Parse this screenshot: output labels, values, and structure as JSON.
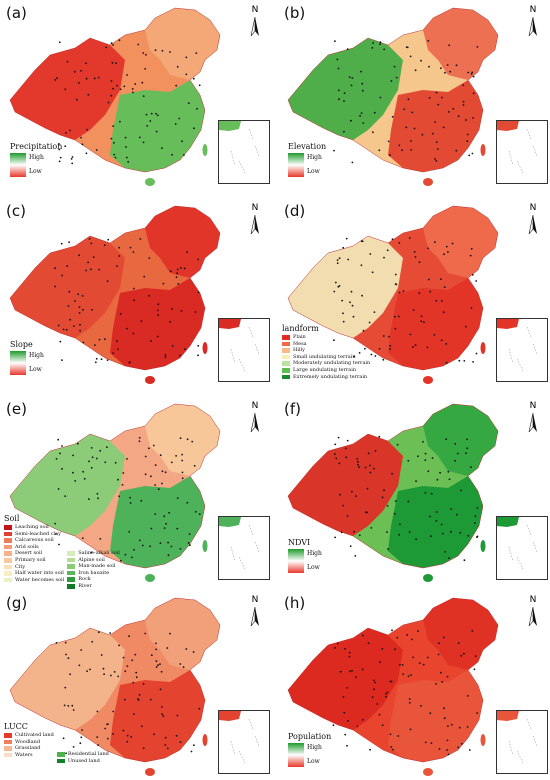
{
  "panels": [
    {
      "id": "a",
      "tag": "(a)",
      "legend": {
        "type": "gradient",
        "title": "Precipitation",
        "high": "High",
        "low": "Low"
      }
    },
    {
      "id": "b",
      "tag": "(b)",
      "legend": {
        "type": "gradient",
        "title": "Elevation",
        "high": "High",
        "low": "Low"
      }
    },
    {
      "id": "c",
      "tag": "(c)",
      "legend": {
        "type": "gradient",
        "title": "Slope",
        "high": "High",
        "low": "Low"
      }
    },
    {
      "id": "d",
      "tag": "(d)",
      "legend": {
        "type": "categorical",
        "title": "landform",
        "items": [
          {
            "label": "Plain",
            "color": "#e32b22"
          },
          {
            "label": "Mesa",
            "color": "#f06a4a"
          },
          {
            "label": "Hilly",
            "color": "#f9b889"
          },
          {
            "label": "Small undulating terrain",
            "color": "#f6f0b8"
          },
          {
            "label": "Moderately undulating terrain",
            "color": "#b9e3a0"
          },
          {
            "label": "Large undulating terrain",
            "color": "#5fbf4e"
          },
          {
            "label": "Extremely undulating terrain",
            "color": "#1a8a2c"
          }
        ]
      }
    },
    {
      "id": "e",
      "tag": "(e)",
      "legend": {
        "type": "categorical2",
        "title": "Soil",
        "col1": [
          {
            "label": "Leaching soil",
            "color": "#c1121c"
          },
          {
            "label": "Semi-leached clay",
            "color": "#e0412e"
          },
          {
            "label": "Calcareous soil",
            "color": "#ef7c5b"
          },
          {
            "label": "Arid soils",
            "color": "#f49a78"
          },
          {
            "label": "Desert soil",
            "color": "#f6b28a"
          },
          {
            "label": "Primary soil",
            "color": "#f8c99e"
          },
          {
            "label": "City",
            "color": "#fbe0b5"
          },
          {
            "label": "Half water into soil",
            "color": "#f7f0c6"
          },
          {
            "label": "Water becomes soil",
            "color": "#e7f2c6"
          }
        ],
        "col2": [
          {
            "label": "Saline-alkali soil",
            "color": "#d7ecb8"
          },
          {
            "label": "Alpine soil",
            "color": "#b5dd98"
          },
          {
            "label": "Man-made soil",
            "color": "#8ccc78"
          },
          {
            "label": "Iron bauxite",
            "color": "#5db45a"
          },
          {
            "label": "Rock",
            "color": "#2f9a3e"
          },
          {
            "label": "River",
            "color": "#137a2a"
          }
        ]
      }
    },
    {
      "id": "f",
      "tag": "(f)",
      "legend": {
        "type": "gradient",
        "title": "NDVI",
        "high": "High",
        "low": "Low"
      }
    },
    {
      "id": "g",
      "tag": "(g)",
      "legend": {
        "type": "categorical2",
        "title": "LUCC",
        "col1": [
          {
            "label": "Cultivated land",
            "color": "#e6382b"
          },
          {
            "label": "Woodland",
            "color": "#f07e5c"
          },
          {
            "label": "Grassland",
            "color": "#f6b893"
          },
          {
            "label": "Waters",
            "color": "#f9dcc6"
          }
        ],
        "col2": [
          {
            "label": "Residential land",
            "color": "#4fb24e"
          },
          {
            "label": "Unused land",
            "color": "#167f2c"
          }
        ]
      }
    },
    {
      "id": "h",
      "tag": "(h)",
      "legend": {
        "type": "gradient",
        "title": "Population",
        "high": "High",
        "low": "Low"
      }
    }
  ],
  "north_label": "N",
  "map_fills": {
    "a": {
      "west": "#e2392c",
      "mid": "#f2905e",
      "east": "#67bd5a",
      "ne": "#f4a777"
    },
    "b": {
      "west": "#4fae4a",
      "mid": "#f6c78d",
      "east": "#e24a33",
      "ne": "#ee7052"
    },
    "c": {
      "west": "#e34a33",
      "mid": "#e8693f",
      "east": "#d92a23",
      "ne": "#e03528"
    },
    "d": {
      "west": "#f2ddb0",
      "mid": "#e64b35",
      "east": "#e23528",
      "ne": "#ee6a4a"
    },
    "e": {
      "west": "#8ccc78",
      "mid": "#f4a784",
      "east": "#4db25a",
      "ne": "#f7c79a"
    },
    "f": {
      "west": "#d93528",
      "mid": "#6bbf55",
      "east": "#1d9a35",
      "ne": "#35a842"
    },
    "g": {
      "west": "#f3b48c",
      "mid": "#f08a64",
      "east": "#e4432f",
      "ne": "#f2a079"
    },
    "h": {
      "west": "#dd2a20",
      "mid": "#e9452e",
      "east": "#e9553a",
      "ne": "#df3224"
    }
  }
}
